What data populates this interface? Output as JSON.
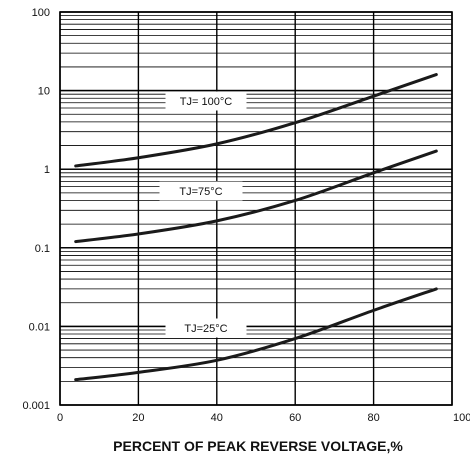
{
  "chart_data": {
    "type": "line",
    "title": "",
    "xlabel": "PERCENT OF PEAK REVERSE VOLTAGE,%",
    "ylabel": "",
    "x_scale": "linear",
    "y_scale": "log",
    "xlim": [
      0,
      100
    ],
    "ylim": [
      0.001,
      100
    ],
    "grid": true,
    "x_ticks": [
      "0",
      "20",
      "40",
      "60",
      "80",
      "100"
    ],
    "y_ticks": [
      "0.001",
      "0.01",
      "0.1",
      "1",
      "10",
      "100"
    ],
    "series": [
      {
        "name": "TJ= 100°C",
        "x": [
          4,
          20,
          40,
          60,
          80,
          96
        ],
        "y": [
          1.1,
          1.4,
          2.1,
          3.9,
          8.5,
          16
        ]
      },
      {
        "name": "TJ=75°C",
        "x": [
          4,
          20,
          40,
          60,
          80,
          96
        ],
        "y": [
          0.12,
          0.15,
          0.22,
          0.4,
          0.9,
          1.7
        ]
      },
      {
        "name": "TJ=25°C",
        "x": [
          4,
          20,
          40,
          60,
          80,
          96
        ],
        "y": [
          0.0021,
          0.0026,
          0.0037,
          0.007,
          0.016,
          0.03
        ]
      }
    ]
  }
}
